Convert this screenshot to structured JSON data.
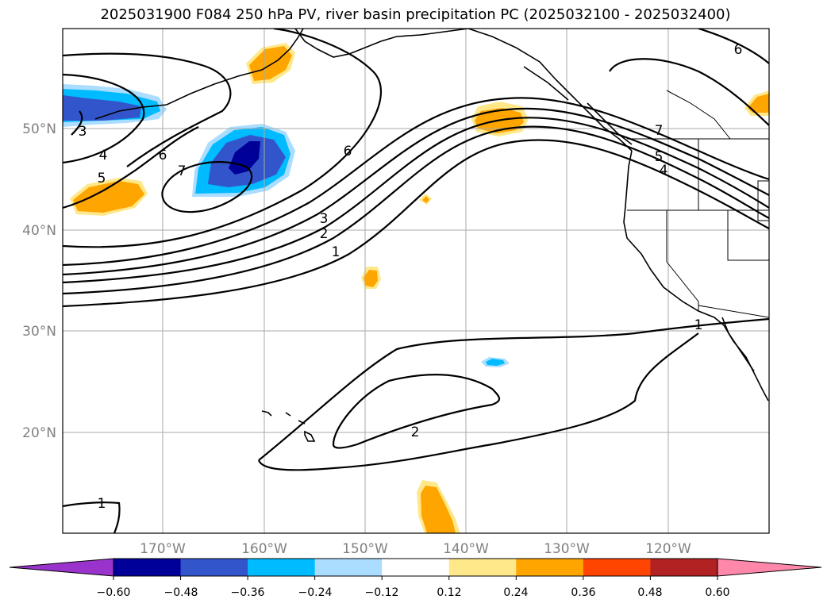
{
  "title": "2025031900 F084 250 hPa PV, river basin precipitation PC (2025032100 - 2025032400)",
  "lat_labels": [
    "50°N",
    "40°N",
    "30°N",
    "20°N"
  ],
  "lon_labels": [
    "170°W",
    "160°W",
    "150°W",
    "140°W",
    "130°W",
    "120°W"
  ],
  "contour_labels": [
    "3",
    "4",
    "5",
    "6",
    "7",
    "6",
    "3",
    "2",
    "1",
    "7",
    "5",
    "4",
    "6",
    "1",
    "2",
    "1"
  ],
  "colorbar": {
    "ticks": [
      "−0.60",
      "−0.48",
      "−0.36",
      "−0.24",
      "−0.12",
      "0.12",
      "0.24",
      "0.36",
      "0.48",
      "0.60"
    ],
    "colors": [
      "#9933cc",
      "#000099",
      "#3355cc",
      "#00bbff",
      "#aaddff",
      "#ffffff",
      "#ffe88a",
      "#ffa500",
      "#ff4500",
      "#b22222",
      "#ff88aa"
    ]
  }
}
